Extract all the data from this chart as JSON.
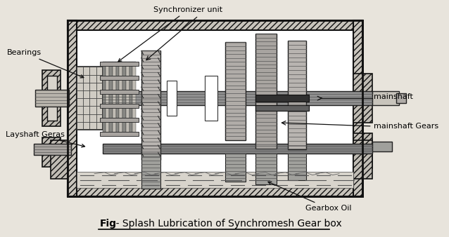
{
  "title_bold": "Fig",
  "title_rest": ":- Splash Lubrication of Synchromesh Gear box",
  "labels": {
    "synchronizer_unit": "Synchronizer unit",
    "bearings": "Bearings",
    "layshaft_geras": "Layshaft Geras",
    "mainshaft": "mainshaft",
    "mainshaft_gears": "mainshaft Gears",
    "gearbox_oil": "Gearbox Oil"
  },
  "bg_color": "#e8e4dc",
  "fig_width": 6.38,
  "fig_height": 3.38,
  "dpi": 100
}
